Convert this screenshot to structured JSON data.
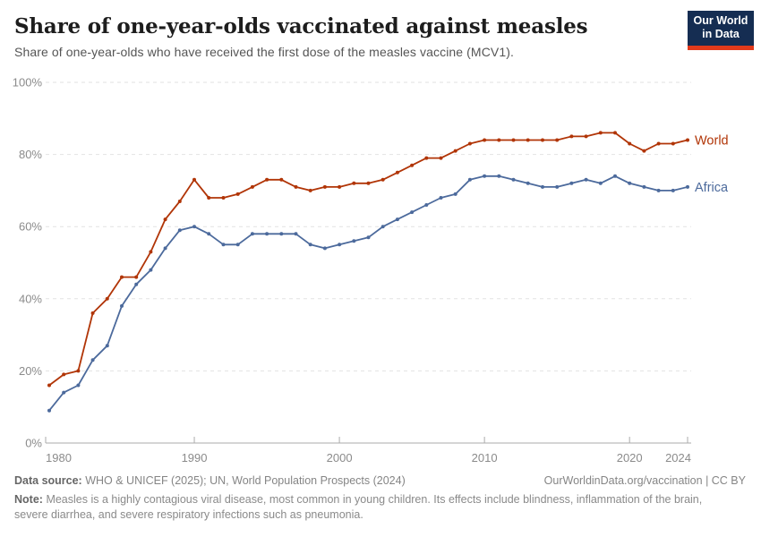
{
  "header": {
    "title": "Share of one-year-olds vaccinated against measles",
    "subtitle": "Share of one-year-olds who have received the first dose of the measles vaccine (MCV1).",
    "logo": {
      "line1": "Our World",
      "line2": "in Data",
      "bg_color": "#152d52",
      "bar_color": "#e23a1b"
    }
  },
  "chart_data": {
    "type": "line",
    "title": "Share of one-year-olds vaccinated against measles",
    "xlabel": "",
    "ylabel": "",
    "grid": "horizontal-dashed",
    "legend_position": "labels-at-line-end",
    "ylim": [
      0,
      100
    ],
    "yticks": [
      0,
      20,
      40,
      60,
      80,
      100
    ],
    "ytick_labels": [
      "0%",
      "20%",
      "40%",
      "60%",
      "80%",
      "100%"
    ],
    "xticks": [
      1980,
      1990,
      2000,
      2010,
      2020,
      2024
    ],
    "years": [
      1980,
      1981,
      1982,
      1983,
      1984,
      1985,
      1986,
      1987,
      1988,
      1989,
      1990,
      1991,
      1992,
      1993,
      1994,
      1995,
      1996,
      1997,
      1998,
      1999,
      2000,
      2001,
      2002,
      2003,
      2004,
      2005,
      2006,
      2007,
      2008,
      2009,
      2010,
      2011,
      2012,
      2013,
      2014,
      2015,
      2016,
      2017,
      2018,
      2019,
      2020,
      2021,
      2022,
      2023,
      2024
    ],
    "series": [
      {
        "name": "World",
        "color": "#b13507",
        "values": [
          16,
          19,
          20,
          36,
          40,
          46,
          46,
          53,
          62,
          67,
          73,
          68,
          68,
          69,
          71,
          73,
          73,
          71,
          70,
          71,
          71,
          72,
          72,
          73,
          75,
          77,
          79,
          79,
          81,
          83,
          84,
          84,
          84,
          84,
          84,
          84,
          85,
          85,
          86,
          86,
          83,
          81,
          83,
          83,
          84
        ]
      },
      {
        "name": "Africa",
        "color": "#4c6a9c",
        "values": [
          9,
          14,
          16,
          23,
          27,
          38,
          44,
          48,
          54,
          59,
          60,
          58,
          55,
          55,
          58,
          58,
          58,
          58,
          55,
          54,
          55,
          56,
          57,
          60,
          62,
          64,
          66,
          68,
          69,
          73,
          74,
          74,
          73,
          72,
          71,
          71,
          72,
          73,
          72,
          74,
          72,
          71,
          70,
          70,
          71
        ]
      }
    ]
  },
  "footer": {
    "source_label": "Data source:",
    "source_text": "WHO & UNICEF (2025); UN, World Population Prospects (2024)",
    "link_text": "OurWorldinData.org/vaccination | CC BY",
    "note_label": "Note:",
    "note_text": "Measles is a highly contagious viral disease, most common in young children. Its effects include blindness, inflammation of the brain, severe diarrhea, and severe respiratory infections such as pneumonia."
  }
}
